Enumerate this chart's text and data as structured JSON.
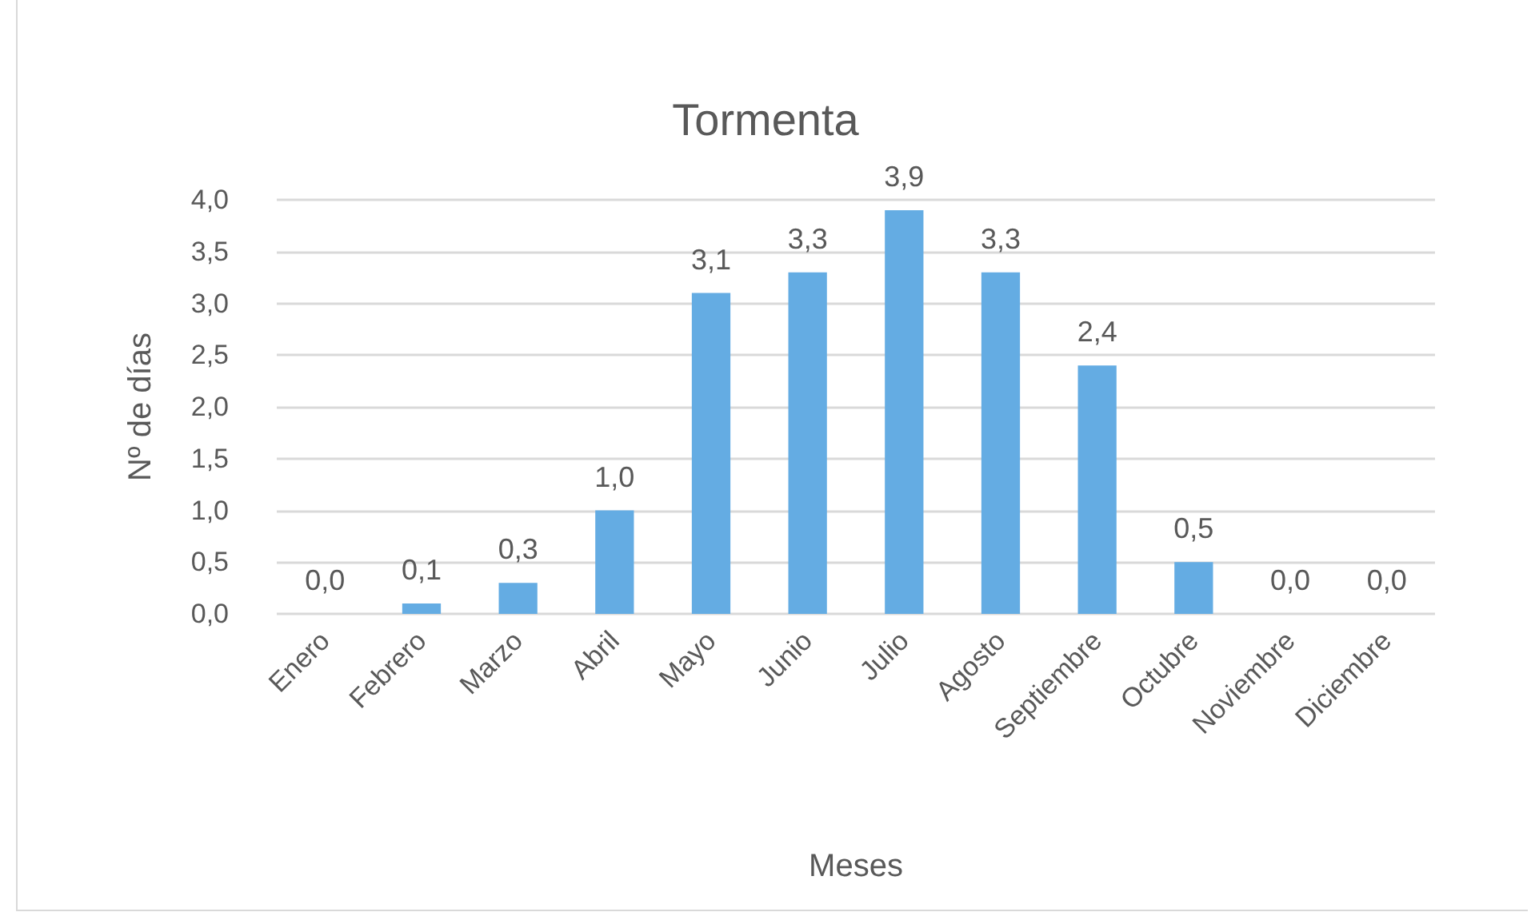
{
  "chart_data": {
    "type": "bar",
    "title": "Tormenta",
    "xlabel": "Meses",
    "ylabel": "Nº de días",
    "categories": [
      "Enero",
      "Febrero",
      "Marzo",
      "Abril",
      "Mayo",
      "Junio",
      "Julio",
      "Agosto",
      "Septiembre",
      "Octubre",
      "Noviembre",
      "Diciembre"
    ],
    "values": [
      0.0,
      0.1,
      0.3,
      1.0,
      3.1,
      3.3,
      3.9,
      3.3,
      2.4,
      0.5,
      0.0,
      0.0
    ],
    "value_labels": [
      "0,0",
      "0,1",
      "0,3",
      "1,0",
      "3,1",
      "3,3",
      "3,9",
      "3,3",
      "2,4",
      "0,5",
      "0,0",
      "0,0"
    ],
    "color": "#64ace3",
    "ylim": [
      0,
      4
    ],
    "yticks": [
      {
        "value": 0,
        "label": "0,0"
      },
      {
        "value": 0.5,
        "label": "0,5"
      },
      {
        "value": 1,
        "label": "1,0"
      },
      {
        "value": 1.5,
        "label": "1,5"
      },
      {
        "value": 2,
        "label": "2,0"
      },
      {
        "value": 2.5,
        "label": "2,5"
      },
      {
        "value": 3,
        "label": "3,0"
      },
      {
        "value": 3.5,
        "label": "3,5"
      },
      {
        "value": 4,
        "label": "4,0"
      }
    ],
    "grid": "y"
  }
}
